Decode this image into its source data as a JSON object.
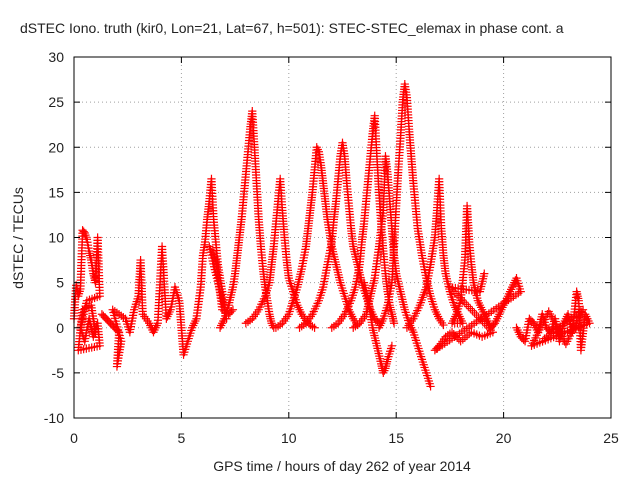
{
  "chart_data": {
    "type": "scatter",
    "title": "dSTEC Iono. truth (kir0, Lon=21, Lat=67, h=501): STEC-STEC_elemax in phase cont. a",
    "xlabel": "GPS time / hours of day 262 of year 2014",
    "ylabel": "dSTEC  / TECUs",
    "xlim": [
      0,
      25
    ],
    "ylim": [
      -10,
      30
    ],
    "xticks": [
      0,
      5,
      10,
      15,
      20,
      25
    ],
    "yticks": [
      -10,
      -5,
      0,
      5,
      10,
      15,
      20,
      25,
      30
    ],
    "grid": true,
    "marker": "plus",
    "color": "#ff0000",
    "series": [
      {
        "points": [
          [
            0.0,
            1.0
          ],
          [
            0.1,
            4.7
          ],
          [
            0.2,
            3.5
          ],
          [
            0.3,
            4.3
          ],
          [
            0.4,
            10.8
          ],
          [
            0.5,
            10.5
          ],
          [
            0.6,
            9.8
          ],
          [
            0.7,
            8.5
          ],
          [
            0.8,
            7.5
          ],
          [
            0.9,
            6.0
          ],
          [
            1.0,
            5.0
          ],
          [
            1.1,
            10.0
          ],
          [
            1.2,
            3.5
          ],
          [
            0.6,
            3.0
          ],
          [
            0.3,
            0.0
          ],
          [
            0.5,
            -1.5
          ],
          [
            0.7,
            1.0
          ],
          [
            0.9,
            -1.0
          ],
          [
            1.1,
            0.5
          ],
          [
            1.2,
            -2.0
          ],
          [
            0.2,
            -2.5
          ],
          [
            0.4,
            2.0
          ],
          [
            0.8,
            2.5
          ],
          [
            1.0,
            -0.5
          ]
        ]
      },
      {
        "points": [
          [
            1.3,
            1.5
          ],
          [
            1.5,
            1.0
          ],
          [
            1.7,
            0.5
          ],
          [
            1.9,
            0.0
          ],
          [
            2.1,
            -0.5
          ],
          [
            2.0,
            -4.3
          ],
          [
            2.2,
            -1.5
          ],
          [
            1.8,
            2.0
          ],
          [
            2.4,
            1.0
          ],
          [
            2.6,
            -0.5
          ],
          [
            2.8,
            2.0
          ],
          [
            3.0,
            3.5
          ],
          [
            3.1,
            7.5
          ],
          [
            3.2,
            1.5
          ],
          [
            3.5,
            0.5
          ],
          [
            3.7,
            -0.5
          ],
          [
            3.9,
            0.5
          ],
          [
            4.1,
            9.0
          ],
          [
            4.3,
            1.0
          ],
          [
            4.5,
            2.0
          ],
          [
            4.7,
            4.5
          ],
          [
            4.9,
            3.0
          ],
          [
            5.0,
            0.0
          ],
          [
            5.1,
            -3.0
          ],
          [
            5.3,
            -1.5
          ],
          [
            5.5,
            0.0
          ],
          [
            5.7,
            1.0
          ],
          [
            5.9,
            4.5
          ],
          [
            6.0,
            8.0
          ],
          [
            6.1,
            9.5
          ],
          [
            6.2,
            12.0
          ],
          [
            6.3,
            14.0
          ],
          [
            6.4,
            16.5
          ],
          [
            6.5,
            12.0
          ],
          [
            6.6,
            9.5
          ],
          [
            6.7,
            7.0
          ],
          [
            6.8,
            5.5
          ],
          [
            6.9,
            4.0
          ],
          [
            7.0,
            2.5
          ],
          [
            7.1,
            1.0
          ],
          [
            6.3,
            9.0
          ],
          [
            6.6,
            7.5
          ],
          [
            6.9,
            2.0
          ],
          [
            7.2,
            1.5
          ],
          [
            7.4,
            2.0
          ]
        ]
      },
      {
        "points": [
          [
            6.8,
            0.0
          ],
          [
            7.0,
            1.0
          ],
          [
            7.2,
            2.5
          ],
          [
            7.4,
            4.5
          ],
          [
            7.5,
            6.0
          ],
          [
            7.6,
            8.0
          ],
          [
            7.7,
            10.0
          ],
          [
            7.8,
            12.0
          ],
          [
            7.9,
            14.5
          ],
          [
            8.0,
            17.0
          ],
          [
            8.1,
            19.5
          ],
          [
            8.2,
            22.0
          ],
          [
            8.3,
            24.0
          ],
          [
            8.4,
            20.0
          ],
          [
            8.5,
            16.0
          ],
          [
            8.6,
            12.0
          ],
          [
            8.7,
            9.0
          ],
          [
            8.8,
            6.5
          ],
          [
            8.9,
            4.5
          ],
          [
            9.0,
            3.0
          ],
          [
            9.1,
            1.5
          ],
          [
            9.2,
            0.5
          ],
          [
            9.3,
            0.0
          ]
        ]
      },
      {
        "points": [
          [
            8.0,
            0.5
          ],
          [
            8.3,
            1.0
          ],
          [
            8.6,
            2.0
          ],
          [
            8.9,
            3.5
          ],
          [
            9.1,
            5.0
          ],
          [
            9.2,
            7.0
          ],
          [
            9.3,
            9.0
          ],
          [
            9.4,
            11.5
          ],
          [
            9.5,
            14.0
          ],
          [
            9.6,
            16.5
          ],
          [
            9.7,
            13.0
          ],
          [
            9.8,
            10.0
          ],
          [
            9.9,
            7.5
          ],
          [
            10.0,
            5.5
          ],
          [
            10.2,
            4.0
          ],
          [
            10.4,
            2.5
          ],
          [
            10.6,
            1.5
          ],
          [
            10.8,
            0.8
          ],
          [
            11.0,
            0.3
          ],
          [
            11.2,
            0.0
          ]
        ]
      },
      {
        "points": [
          [
            9.4,
            0.0
          ],
          [
            9.7,
            0.5
          ],
          [
            10.0,
            1.5
          ],
          [
            10.2,
            3.0
          ],
          [
            10.4,
            4.5
          ],
          [
            10.6,
            6.5
          ],
          [
            10.8,
            9.0
          ],
          [
            10.9,
            11.0
          ],
          [
            11.0,
            13.0
          ],
          [
            11.1,
            15.0
          ],
          [
            11.2,
            17.5
          ],
          [
            11.3,
            20.0
          ],
          [
            11.4,
            19.5
          ],
          [
            11.5,
            18.0
          ],
          [
            11.6,
            16.0
          ],
          [
            11.7,
            14.0
          ],
          [
            11.8,
            12.0
          ],
          [
            11.9,
            10.5
          ],
          [
            12.0,
            9.0
          ],
          [
            12.2,
            7.0
          ],
          [
            12.4,
            5.0
          ],
          [
            12.6,
            3.5
          ],
          [
            12.8,
            2.0
          ],
          [
            13.0,
            1.0
          ],
          [
            13.2,
            0.3
          ]
        ]
      },
      {
        "points": [
          [
            10.5,
            0.0
          ],
          [
            10.8,
            0.5
          ],
          [
            11.1,
            1.5
          ],
          [
            11.4,
            3.0
          ],
          [
            11.6,
            4.5
          ],
          [
            11.8,
            7.0
          ],
          [
            12.0,
            9.5
          ],
          [
            12.1,
            12.0
          ],
          [
            12.2,
            14.0
          ],
          [
            12.3,
            16.5
          ],
          [
            12.4,
            19.0
          ],
          [
            12.5,
            20.5
          ],
          [
            12.6,
            19.0
          ],
          [
            12.7,
            16.0
          ],
          [
            12.8,
            13.5
          ],
          [
            12.9,
            11.0
          ],
          [
            13.0,
            9.0
          ],
          [
            13.2,
            7.0
          ],
          [
            13.4,
            5.0
          ],
          [
            13.6,
            3.5
          ],
          [
            13.8,
            2.0
          ],
          [
            14.0,
            1.0
          ],
          [
            14.2,
            0.5
          ]
        ]
      },
      {
        "points": [
          [
            12.0,
            0.0
          ],
          [
            12.3,
            0.5
          ],
          [
            12.6,
            1.5
          ],
          [
            12.9,
            3.0
          ],
          [
            13.1,
            4.5
          ],
          [
            13.3,
            7.0
          ],
          [
            13.4,
            9.5
          ],
          [
            13.5,
            11.5
          ],
          [
            13.6,
            14.0
          ],
          [
            13.7,
            16.5
          ],
          [
            13.8,
            19.0
          ],
          [
            13.9,
            21.5
          ],
          [
            14.0,
            23.5
          ],
          [
            14.1,
            19.0
          ],
          [
            14.2,
            15.0
          ],
          [
            14.3,
            11.5
          ],
          [
            14.4,
            8.5
          ],
          [
            14.5,
            6.0
          ],
          [
            14.6,
            4.0
          ],
          [
            14.7,
            2.5
          ],
          [
            14.8,
            1.5
          ],
          [
            14.9,
            0.5
          ]
        ]
      },
      {
        "points": [
          [
            14.2,
            0.0
          ],
          [
            14.4,
            1.0
          ],
          [
            14.6,
            2.5
          ],
          [
            14.8,
            5.0
          ],
          [
            14.9,
            9.0
          ],
          [
            15.0,
            13.5
          ],
          [
            15.1,
            17.5
          ],
          [
            15.2,
            21.0
          ],
          [
            15.3,
            25.0
          ],
          [
            15.4,
            27.0
          ],
          [
            15.5,
            25.5
          ],
          [
            15.6,
            22.0
          ],
          [
            15.7,
            19.0
          ],
          [
            15.8,
            16.0
          ],
          [
            15.9,
            13.5
          ],
          [
            16.0,
            11.0
          ],
          [
            16.2,
            8.0
          ],
          [
            16.4,
            5.5
          ],
          [
            16.6,
            3.5
          ],
          [
            16.8,
            2.0
          ],
          [
            17.0,
            1.0
          ],
          [
            17.2,
            0.3
          ]
        ]
      },
      {
        "points": [
          [
            13.0,
            0.0
          ],
          [
            13.3,
            0.5
          ],
          [
            13.6,
            1.5
          ],
          [
            13.8,
            3.5
          ],
          [
            14.0,
            5.5
          ],
          [
            14.2,
            9.0
          ],
          [
            14.4,
            13.0
          ],
          [
            14.5,
            19.0
          ],
          [
            14.6,
            17.0
          ],
          [
            14.7,
            14.0
          ],
          [
            14.8,
            11.0
          ],
          [
            14.9,
            8.0
          ],
          [
            15.0,
            6.0
          ],
          [
            15.2,
            4.0
          ],
          [
            15.4,
            2.0
          ],
          [
            15.6,
            0.5
          ],
          [
            15.8,
            -0.5
          ],
          [
            16.0,
            -2.0
          ],
          [
            16.2,
            -3.5
          ],
          [
            16.4,
            -5.0
          ],
          [
            16.6,
            -6.5
          ]
        ]
      },
      {
        "points": [
          [
            13.5,
            5.0
          ],
          [
            13.7,
            3.0
          ],
          [
            13.9,
            0.0
          ],
          [
            14.1,
            -2.0
          ],
          [
            14.3,
            -4.0
          ],
          [
            14.4,
            -5.0
          ],
          [
            14.5,
            -4.5
          ],
          [
            14.6,
            -3.5
          ],
          [
            14.8,
            -2.0
          ]
        ]
      },
      {
        "points": [
          [
            15.5,
            0.0
          ],
          [
            15.8,
            1.0
          ],
          [
            16.1,
            2.5
          ],
          [
            16.4,
            4.5
          ],
          [
            16.6,
            7.0
          ],
          [
            16.8,
            10.0
          ],
          [
            16.9,
            13.0
          ],
          [
            17.0,
            16.5
          ],
          [
            17.1,
            11.0
          ],
          [
            17.2,
            8.0
          ],
          [
            17.3,
            6.0
          ],
          [
            17.5,
            4.0
          ],
          [
            17.7,
            2.5
          ],
          [
            17.9,
            1.5
          ],
          [
            18.1,
            0.5
          ],
          [
            17.6,
            0.5
          ],
          [
            17.8,
            1.5
          ],
          [
            18.0,
            3.0
          ],
          [
            18.2,
            7.5
          ],
          [
            18.3,
            13.5
          ],
          [
            18.4,
            9.5
          ],
          [
            18.5,
            7.0
          ],
          [
            18.6,
            5.0
          ],
          [
            18.8,
            3.0
          ],
          [
            19.0,
            2.0
          ],
          [
            19.2,
            1.0
          ],
          [
            19.4,
            0.0
          ],
          [
            19.6,
            0.5
          ],
          [
            19.8,
            1.5
          ],
          [
            20.0,
            2.5
          ],
          [
            20.2,
            3.5
          ],
          [
            20.4,
            4.5
          ],
          [
            20.6,
            5.5
          ],
          [
            20.8,
            4.0
          ],
          [
            16.8,
            -2.5
          ],
          [
            17.0,
            -2.0
          ],
          [
            17.3,
            -1.0
          ],
          [
            17.6,
            -0.5
          ],
          [
            18.0,
            -1.5
          ],
          [
            18.5,
            -0.5
          ],
          [
            19.0,
            -1.0
          ],
          [
            19.5,
            -0.5
          ],
          [
            17.5,
            4.5
          ],
          [
            18.9,
            4.0
          ],
          [
            19.1,
            6.0
          ]
        ]
      },
      {
        "points": [
          [
            20.6,
            0.0
          ],
          [
            20.8,
            -1.0
          ],
          [
            21.0,
            -1.5
          ],
          [
            21.2,
            1.0
          ],
          [
            21.4,
            0.5
          ],
          [
            21.6,
            -0.5
          ],
          [
            21.8,
            1.5
          ],
          [
            22.0,
            0.0
          ],
          [
            22.2,
            -0.5
          ],
          [
            22.4,
            1.0
          ],
          [
            22.6,
            -1.5
          ],
          [
            22.8,
            0.5
          ],
          [
            23.0,
            1.5
          ],
          [
            23.2,
            -0.5
          ],
          [
            23.4,
            4.0
          ],
          [
            23.5,
            3.0
          ],
          [
            23.6,
            -2.5
          ],
          [
            23.8,
            1.5
          ],
          [
            24.0,
            0.5
          ],
          [
            21.3,
            -2.0
          ],
          [
            22.1,
            1.8
          ],
          [
            22.9,
            -1.8
          ],
          [
            23.7,
            2.0
          ],
          [
            21.9,
            -1.2
          ]
        ]
      }
    ]
  }
}
